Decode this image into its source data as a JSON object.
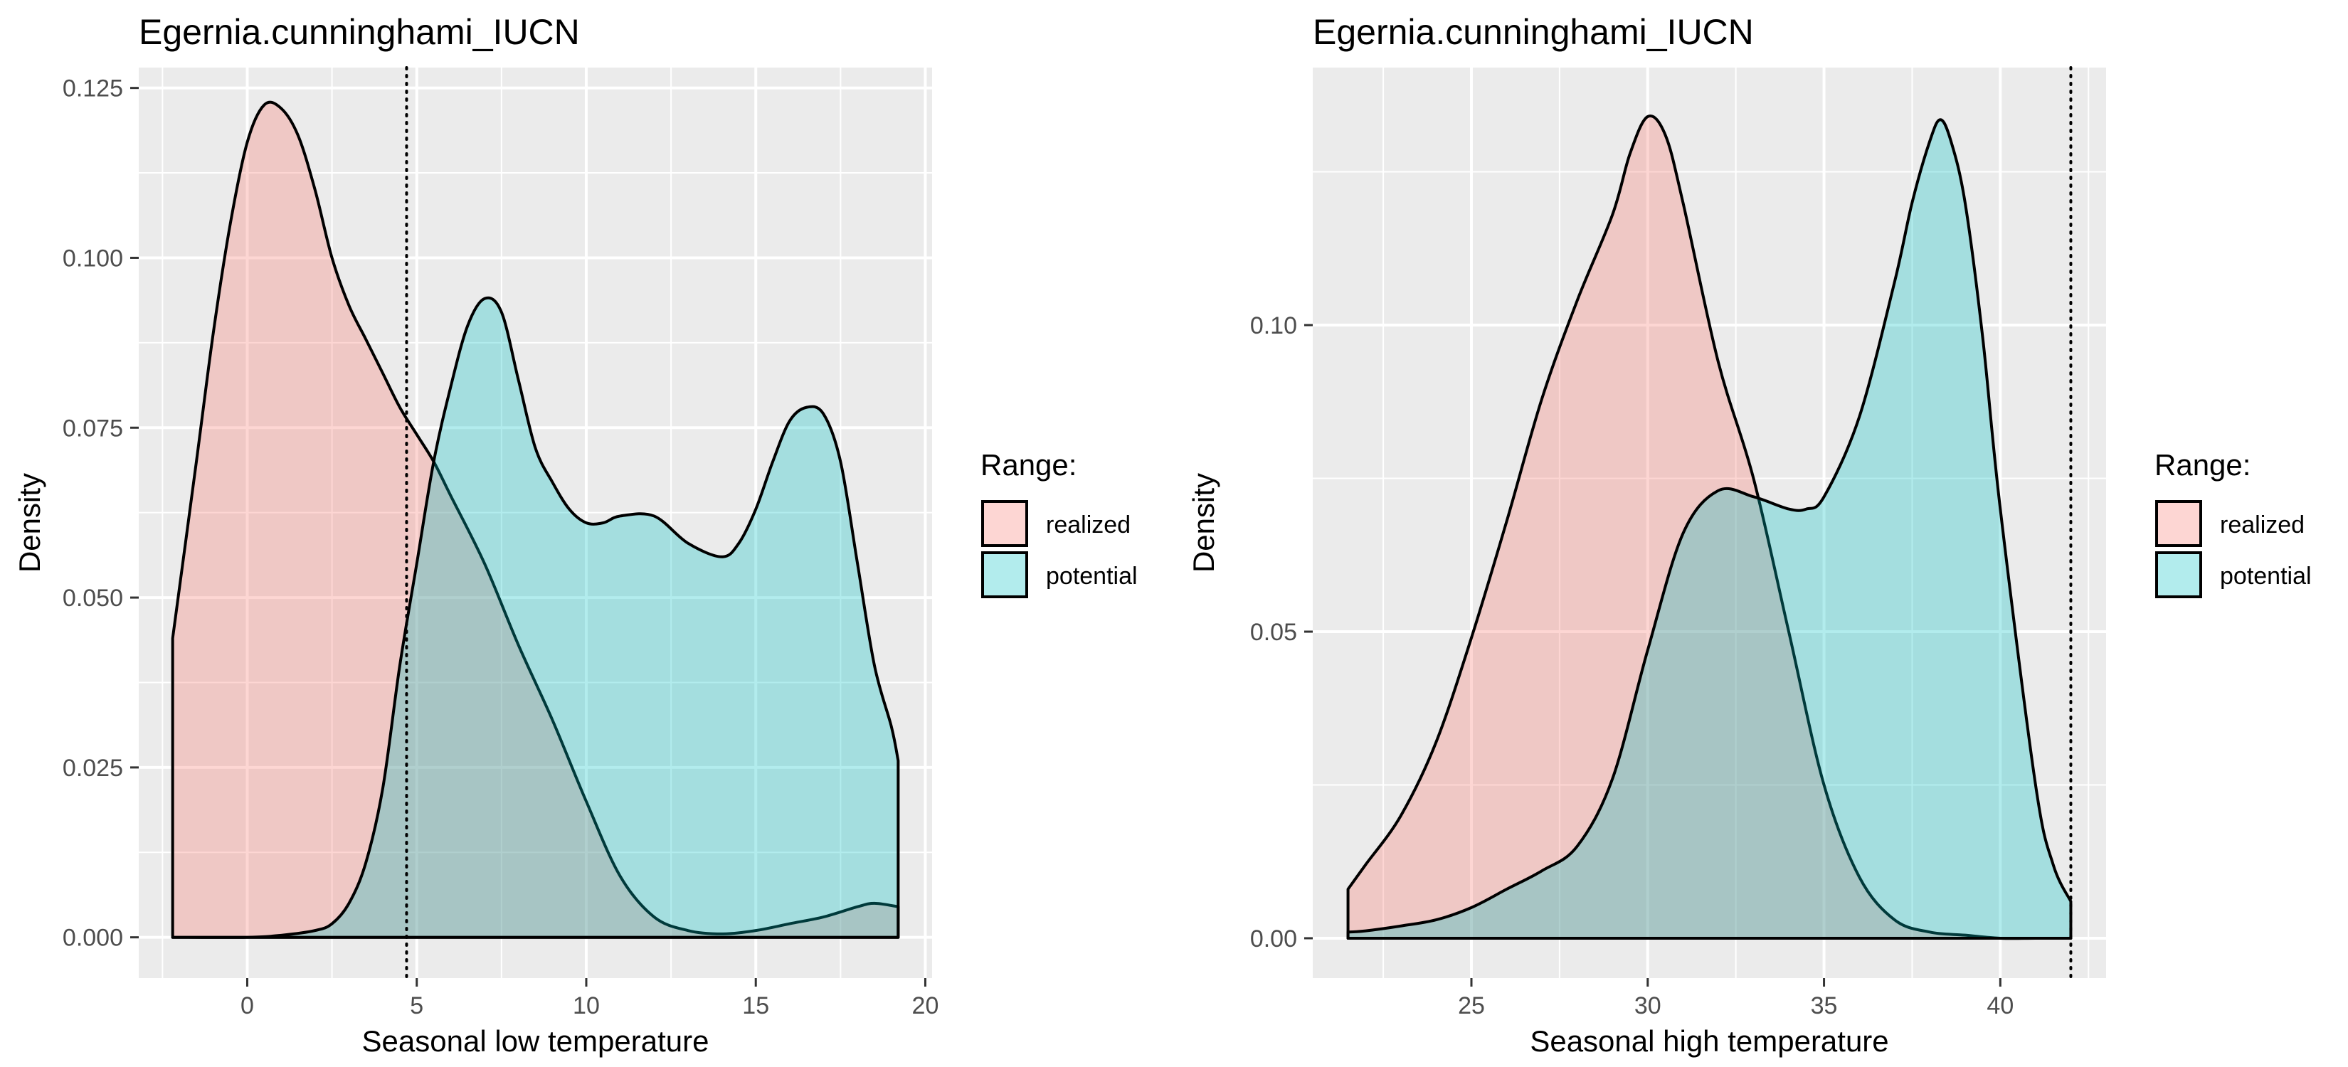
{
  "chart_data": [
    {
      "type": "area",
      "title": "Egernia.cunninghami_IUCN",
      "xlabel": "Seasonal low temperature",
      "ylabel": "Density",
      "xlim": [
        -3.2,
        20.2
      ],
      "ylim": [
        -0.006,
        0.128
      ],
      "x_ticks": [
        0,
        5,
        10,
        15,
        20
      ],
      "x_tick_labels": [
        "0",
        "5",
        "10",
        "15",
        "20"
      ],
      "y_ticks": [
        0,
        0.025,
        0.05,
        0.075,
        0.1,
        0.125
      ],
      "y_tick_labels": [
        "0.000",
        "0.025",
        "0.050",
        "0.075",
        "0.100",
        "0.125"
      ],
      "vline": 4.7,
      "grid": true,
      "legend_position": "right",
      "legend": {
        "title": "Range:",
        "entries": [
          "realized",
          "potential"
        ]
      },
      "colors": {
        "realized": "#f8766d",
        "potential": "#00bfc4"
      },
      "series": [
        {
          "name": "realized",
          "x": [
            -2.2,
            -1.5,
            -1,
            -0.5,
            0,
            0.5,
            1,
            1.5,
            2,
            2.5,
            3,
            3.5,
            4,
            4.5,
            5,
            5.5,
            6,
            7,
            8,
            9,
            10,
            11,
            12,
            13,
            14,
            15,
            16,
            17,
            18,
            18.5,
            19.2
          ],
          "y": [
            0.044,
            0.07,
            0.089,
            0.105,
            0.117,
            0.1225,
            0.122,
            0.118,
            0.11,
            0.1,
            0.093,
            0.088,
            0.083,
            0.078,
            0.074,
            0.07,
            0.065,
            0.055,
            0.043,
            0.032,
            0.02,
            0.009,
            0.003,
            0.001,
            0.0005,
            0.001,
            0.002,
            0.003,
            0.0045,
            0.005,
            0.0045
          ]
        },
        {
          "name": "potential",
          "x": [
            -2.2,
            0,
            1,
            2,
            2.5,
            3,
            3.5,
            4,
            4.5,
            5,
            5.5,
            6,
            6.5,
            7,
            7.5,
            8,
            8.5,
            9,
            9.5,
            10,
            10.5,
            11,
            12,
            13,
            14,
            14.5,
            15,
            15.5,
            16,
            16.5,
            17,
            17.5,
            18,
            18.5,
            19,
            19.2
          ],
          "y": [
            0,
            0,
            0.0003,
            0.001,
            0.002,
            0.005,
            0.011,
            0.022,
            0.04,
            0.055,
            0.07,
            0.081,
            0.09,
            0.094,
            0.092,
            0.082,
            0.072,
            0.067,
            0.063,
            0.061,
            0.061,
            0.062,
            0.062,
            0.058,
            0.056,
            0.058,
            0.063,
            0.07,
            0.076,
            0.078,
            0.077,
            0.07,
            0.055,
            0.04,
            0.031,
            0.026
          ]
        }
      ]
    },
    {
      "type": "area",
      "title": "Egernia.cunninghami_IUCN",
      "xlabel": "Seasonal high temperature",
      "ylabel": "Density",
      "xlim": [
        20.5,
        43
      ],
      "ylim": [
        -0.0065,
        0.142
      ],
      "x_ticks": [
        25,
        30,
        35,
        40
      ],
      "x_tick_labels": [
        "25",
        "30",
        "35",
        "40"
      ],
      "y_ticks": [
        0,
        0.05,
        0.1
      ],
      "y_tick_labels": [
        "0.00",
        "0.05",
        "0.10"
      ],
      "vline": 42,
      "grid": true,
      "legend_position": "right",
      "legend": {
        "title": "Range:",
        "entries": [
          "realized",
          "potential"
        ]
      },
      "colors": {
        "realized": "#f8766d",
        "potential": "#00bfc4"
      },
      "series": [
        {
          "name": "realized",
          "x": [
            21.5,
            22,
            23,
            24,
            25,
            26,
            27,
            28,
            29,
            29.5,
            30,
            30.5,
            31,
            32,
            33,
            34,
            35,
            36,
            37,
            38,
            39,
            40,
            41,
            42
          ],
          "y": [
            0.008,
            0.012,
            0.02,
            0.032,
            0.049,
            0.068,
            0.088,
            0.104,
            0.118,
            0.128,
            0.134,
            0.131,
            0.12,
            0.094,
            0.075,
            0.05,
            0.025,
            0.01,
            0.003,
            0.001,
            0.0005,
            0,
            0,
            0
          ]
        },
        {
          "name": "potential",
          "x": [
            21.5,
            22,
            23,
            24,
            25,
            26,
            27,
            28,
            29,
            30,
            31,
            32,
            33,
            34,
            34.5,
            35,
            36,
            37,
            37.5,
            38,
            38.3,
            38.6,
            39,
            39.5,
            40,
            41,
            41.5,
            42
          ],
          "y": [
            0.001,
            0.0012,
            0.002,
            0.003,
            0.005,
            0.008,
            0.011,
            0.015,
            0.026,
            0.047,
            0.066,
            0.073,
            0.072,
            0.07,
            0.07,
            0.072,
            0.085,
            0.107,
            0.12,
            0.13,
            0.1335,
            0.13,
            0.12,
            0.098,
            0.07,
            0.025,
            0.012,
            0.006
          ]
        }
      ]
    }
  ]
}
